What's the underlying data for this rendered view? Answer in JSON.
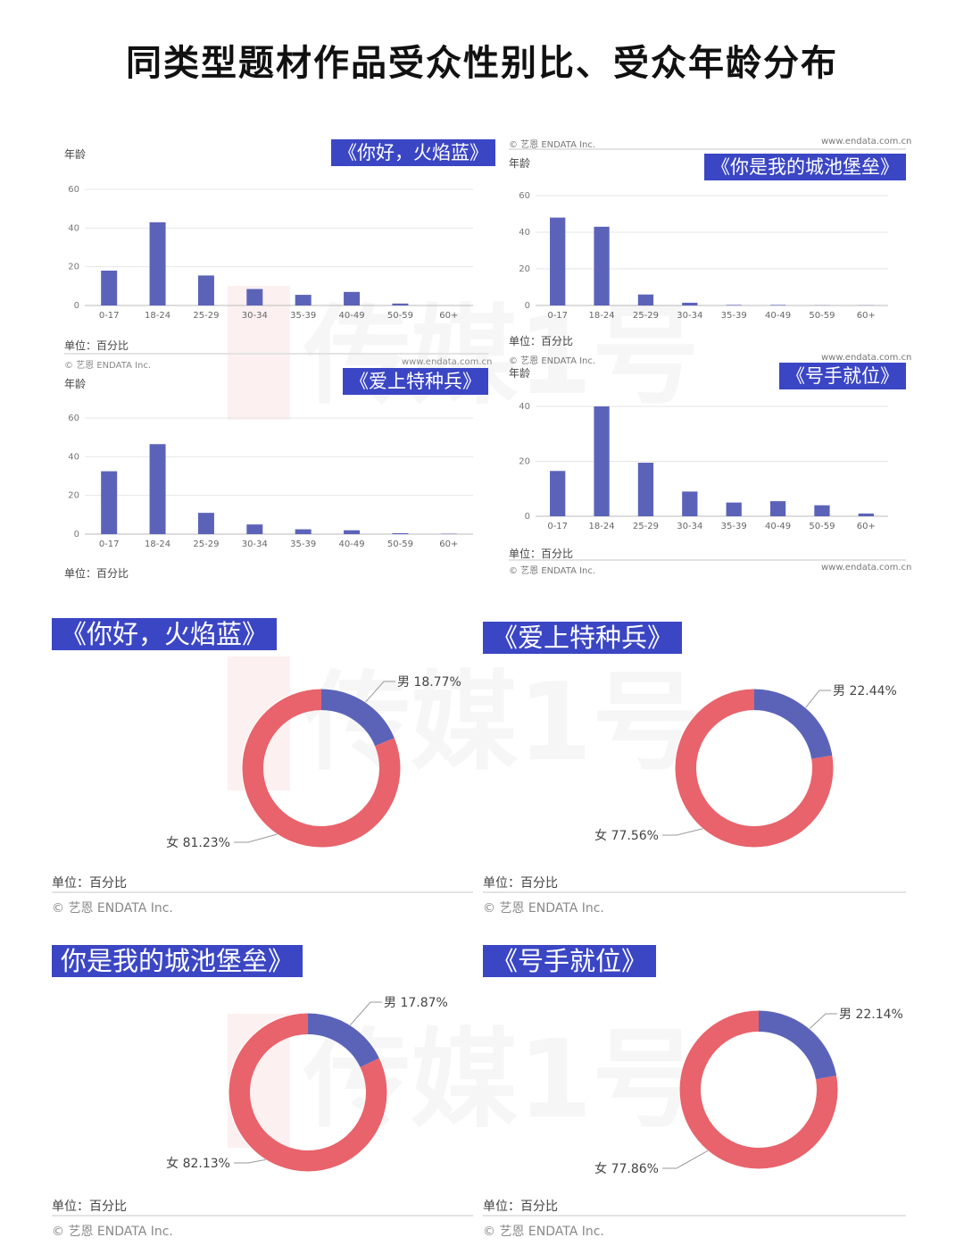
{
  "title": "同类型题材作品受众性别比、受众年龄分布",
  "watermark": "传媒1号",
  "unit_label": "单位：百分比",
  "credit": "© 艺恩 ENDATA Inc.",
  "site": "www.endata.com.cn",
  "age_ylabel": "年龄",
  "colors": {
    "bar": "#5b63b9",
    "male": "#5b63b9",
    "female": "#e8636b",
    "tag_bg": "#3b46c4"
  },
  "chart_data": [
    {
      "type": "bar",
      "title": "《你好，火焰蓝》",
      "ylabel": "年龄",
      "categories": [
        "0-17",
        "18-24",
        "25-29",
        "30-34",
        "35-39",
        "40-49",
        "50-59",
        "60+"
      ],
      "values": [
        18,
        43,
        15.5,
        8.5,
        5.5,
        7,
        1,
        0
      ],
      "ylim": [
        0,
        60
      ],
      "yticks": [
        0,
        20,
        40,
        60
      ],
      "grid": true
    },
    {
      "type": "bar",
      "title": "《你是我的城池堡垒》",
      "ylabel": "年龄",
      "categories": [
        "0-17",
        "18-24",
        "25-29",
        "30-34",
        "35-39",
        "40-49",
        "50-59",
        "60+"
      ],
      "values": [
        48,
        43,
        6,
        1.5,
        0.3,
        0.3,
        0.1,
        0.1
      ],
      "ylim": [
        0,
        60
      ],
      "yticks": [
        0,
        20,
        40,
        60
      ],
      "grid": true
    },
    {
      "type": "bar",
      "title": "《爱上特种兵》",
      "ylabel": "年龄",
      "categories": [
        "0-17",
        "18-24",
        "25-29",
        "30-34",
        "35-39",
        "40-49",
        "50-59",
        "60+"
      ],
      "values": [
        32.5,
        46.5,
        11,
        5,
        2.5,
        2,
        0.5,
        0.2
      ],
      "ylim": [
        0,
        60
      ],
      "yticks": [
        0,
        20,
        40,
        60
      ],
      "grid": true
    },
    {
      "type": "bar",
      "title": "《号手就位》",
      "ylabel": "年龄",
      "categories": [
        "0-17",
        "18-24",
        "25-29",
        "30-34",
        "35-39",
        "40-49",
        "50-59",
        "60+"
      ],
      "values": [
        16.5,
        40,
        19.5,
        9,
        5,
        5.5,
        4,
        1
      ],
      "ylim": [
        0,
        40
      ],
      "yticks": [
        0,
        20,
        40
      ],
      "grid": true
    },
    {
      "type": "pie",
      "title": "《你好，火焰蓝》",
      "slices": [
        {
          "label": "男",
          "value": 18.77,
          "text": "18.77%"
        },
        {
          "label": "女",
          "value": 81.23,
          "text": "81.23%"
        }
      ]
    },
    {
      "type": "pie",
      "title": "《爱上特种兵》",
      "slices": [
        {
          "label": "男",
          "value": 22.44,
          "text": "22.44%"
        },
        {
          "label": "女",
          "value": 77.56,
          "text": "77.56%"
        }
      ]
    },
    {
      "type": "pie",
      "title": "你是我的城池堡垒》",
      "slices": [
        {
          "label": "男",
          "value": 17.87,
          "text": "17.87%"
        },
        {
          "label": "女",
          "value": 82.13,
          "text": "82.13%"
        }
      ]
    },
    {
      "type": "pie",
      "title": "《号手就位》",
      "slices": [
        {
          "label": "男",
          "value": 22.14,
          "text": "22.14%"
        },
        {
          "label": "女",
          "value": 77.86,
          "text": "77.86%"
        }
      ]
    }
  ]
}
